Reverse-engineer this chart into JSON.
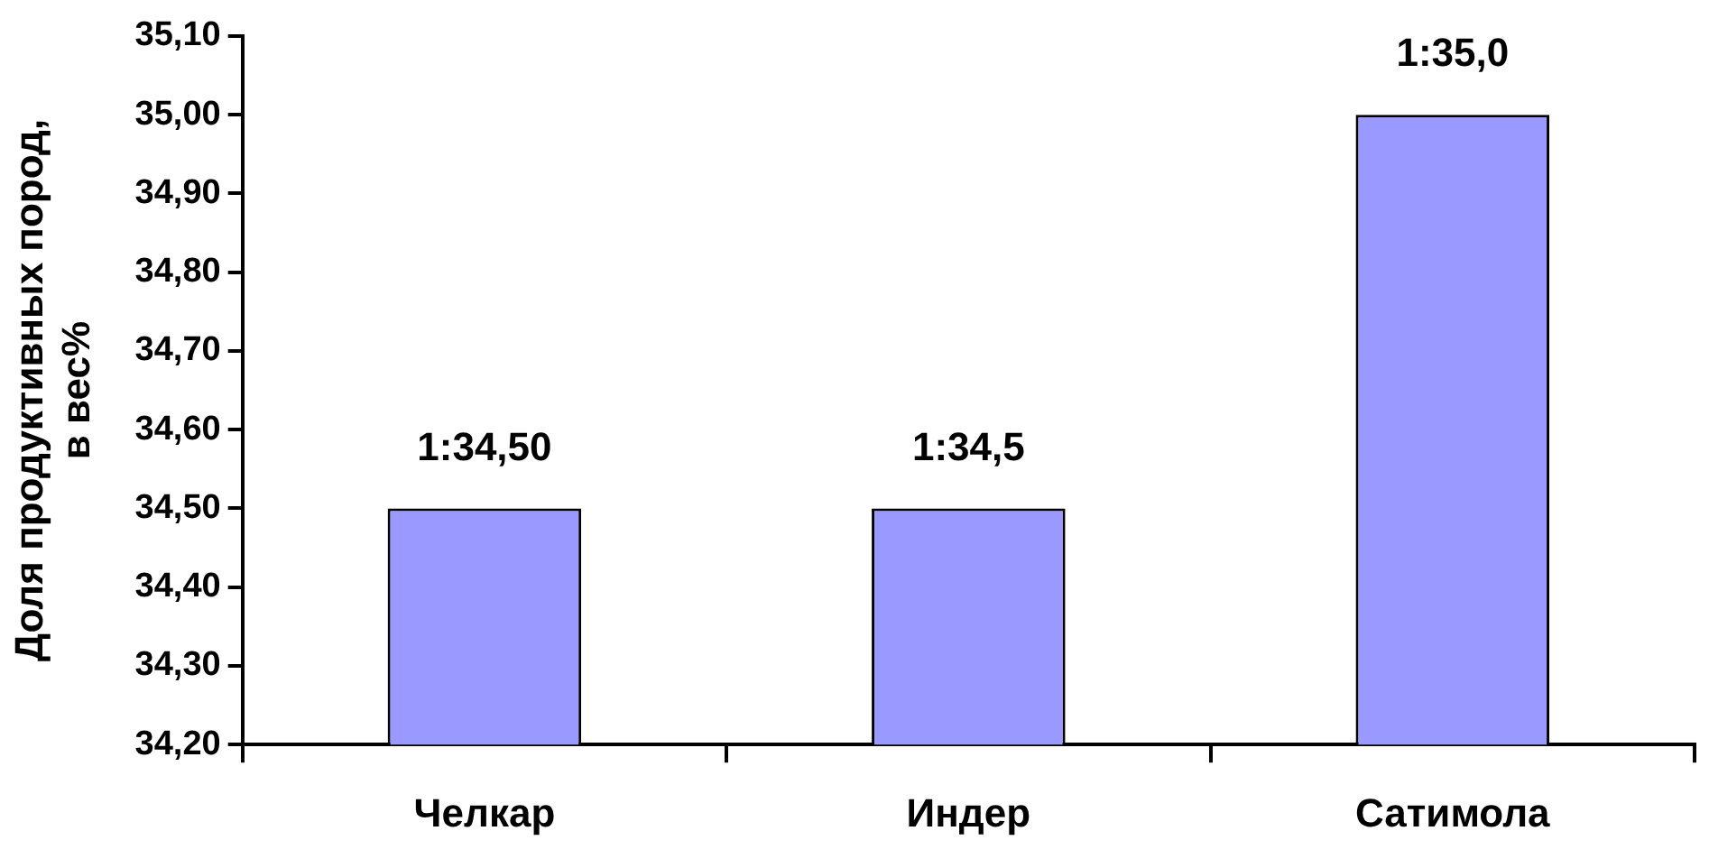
{
  "chart_data": {
    "type": "bar",
    "ylabel": "Доля продуктивных пород, в вес%",
    "categories": [
      "Челкар",
      "Индер",
      "Сатимола"
    ],
    "values": [
      34.5,
      34.5,
      35.0
    ],
    "color": "#9999ff",
    "value_labels": [
      "1:34,50",
      "1:34,5",
      "1:35,0"
    ],
    "ylim": [
      34.2,
      35.1
    ],
    "yticks": [
      {
        "value": 34.2,
        "label": "34,20"
      },
      {
        "value": 34.3,
        "label": "34,30"
      },
      {
        "value": 34.4,
        "label": "34,40"
      },
      {
        "value": 34.5,
        "label": "34,50"
      },
      {
        "value": 34.6,
        "label": "34,60"
      },
      {
        "value": 34.7,
        "label": "34,70"
      },
      {
        "value": 34.8,
        "label": "34,80"
      },
      {
        "value": 34.9,
        "label": "34,90"
      },
      {
        "value": 35.0,
        "label": "35,00"
      },
      {
        "value": 35.1,
        "label": "35,10"
      }
    ],
    "grid": false,
    "legend": false
  }
}
